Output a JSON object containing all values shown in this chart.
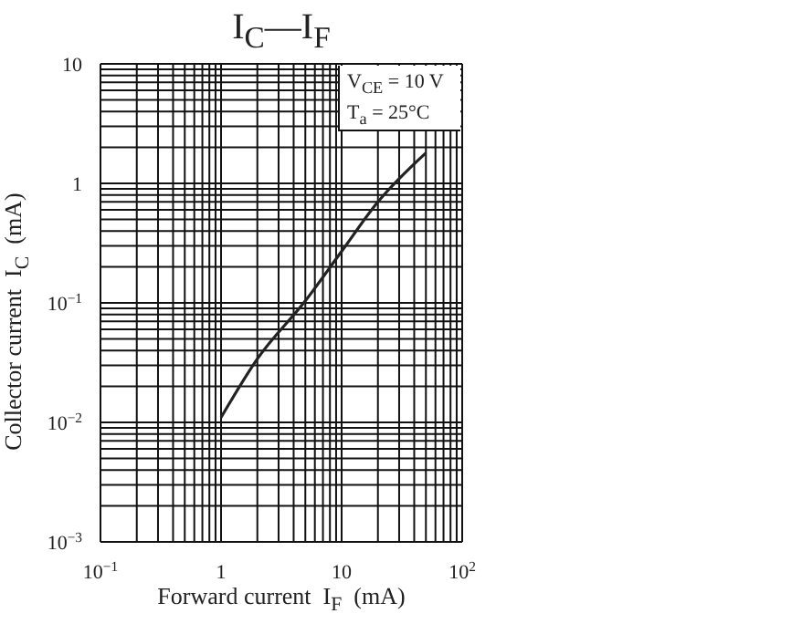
{
  "chart_data": {
    "type": "line",
    "title": "I$_{C}$—I$_{F}$",
    "xlabel": "Forward current  I$_{F}$  (mA)",
    "ylabel": "Collector current  I$_{C}$  (mA)",
    "annotations": [
      "V$_{CE}$ = 10 V",
      "T$_{a}$ = 25°C"
    ],
    "log": "xy",
    "grid": true,
    "marker": "none",
    "line_style": "solid",
    "xlim": [
      0.1,
      100
    ],
    "ylim": [
      0.001,
      10
    ],
    "xticks": [
      {
        "value": 0.1,
        "label": "10$^{−1}$"
      },
      {
        "value": 0.2,
        "label": null
      },
      {
        "value": 0.3,
        "label": null
      },
      {
        "value": 0.4,
        "label": null
      },
      {
        "value": 0.5,
        "label": null
      },
      {
        "value": 0.6,
        "label": null
      },
      {
        "value": 0.7,
        "label": null
      },
      {
        "value": 0.8,
        "label": null
      },
      {
        "value": 0.9,
        "label": null
      },
      1,
      {
        "value": 2,
        "label": null
      },
      {
        "value": 3,
        "label": null
      },
      {
        "value": 4,
        "label": null
      },
      {
        "value": 5,
        "label": null
      },
      {
        "value": 6,
        "label": null
      },
      {
        "value": 7,
        "label": null
      },
      {
        "value": 8,
        "label": null
      },
      {
        "value": 9,
        "label": null
      },
      10,
      {
        "value": 20,
        "label": null
      },
      {
        "value": 30,
        "label": null
      },
      {
        "value": 40,
        "label": null
      },
      {
        "value": 50,
        "label": null
      },
      {
        "value": 60,
        "label": null
      },
      {
        "value": 70,
        "label": null
      },
      {
        "value": 80,
        "label": null
      },
      {
        "value": 90,
        "label": null
      },
      {
        "value": 100,
        "label": "10$^{2}$"
      }
    ],
    "yticks": [
      {
        "value": 0.001,
        "label": "10$^{−3}$"
      },
      {
        "value": 0.002,
        "label": null
      },
      {
        "value": 0.003,
        "label": null
      },
      {
        "value": 0.004,
        "label": null
      },
      {
        "value": 0.005,
        "label": null
      },
      {
        "value": 0.006,
        "label": null
      },
      {
        "value": 0.007,
        "label": null
      },
      {
        "value": 0.008,
        "label": null
      },
      {
        "value": 0.009,
        "label": null
      },
      {
        "value": 0.01,
        "label": "10$^{−2}$"
      },
      {
        "value": 0.02,
        "label": null
      },
      {
        "value": 0.03,
        "label": null
      },
      {
        "value": 0.04,
        "label": null
      },
      {
        "value": 0.05,
        "label": null
      },
      {
        "value": 0.06,
        "label": null
      },
      {
        "value": 0.07,
        "label": null
      },
      {
        "value": 0.08,
        "label": null
      },
      {
        "value": 0.09,
        "label": null
      },
      {
        "value": 0.1,
        "label": "10$^{−1}$"
      },
      {
        "value": 0.2,
        "label": null
      },
      {
        "value": 0.3,
        "label": null
      },
      {
        "value": 0.4,
        "label": null
      },
      {
        "value": 0.5,
        "label": null
      },
      {
        "value": 0.6,
        "label": null
      },
      {
        "value": 0.7,
        "label": null
      },
      {
        "value": 0.8,
        "label": null
      },
      {
        "value": 0.9,
        "label": null
      },
      1,
      {
        "value": 2,
        "label": null
      },
      {
        "value": 3,
        "label": null
      },
      {
        "value": 4,
        "label": null
      },
      {
        "value": 5,
        "label": null
      },
      {
        "value": 6,
        "label": null
      },
      {
        "value": 7,
        "label": null
      },
      {
        "value": 8,
        "label": null
      },
      {
        "value": 9,
        "label": null
      },
      10
    ],
    "x": [
      1,
      2,
      5,
      10,
      20,
      50
    ],
    "series": [
      {
        "color": "#222222",
        "values": [
          0.011,
          0.034,
          0.104,
          0.27,
          0.7,
          1.8
        ]
      }
    ]
  }
}
